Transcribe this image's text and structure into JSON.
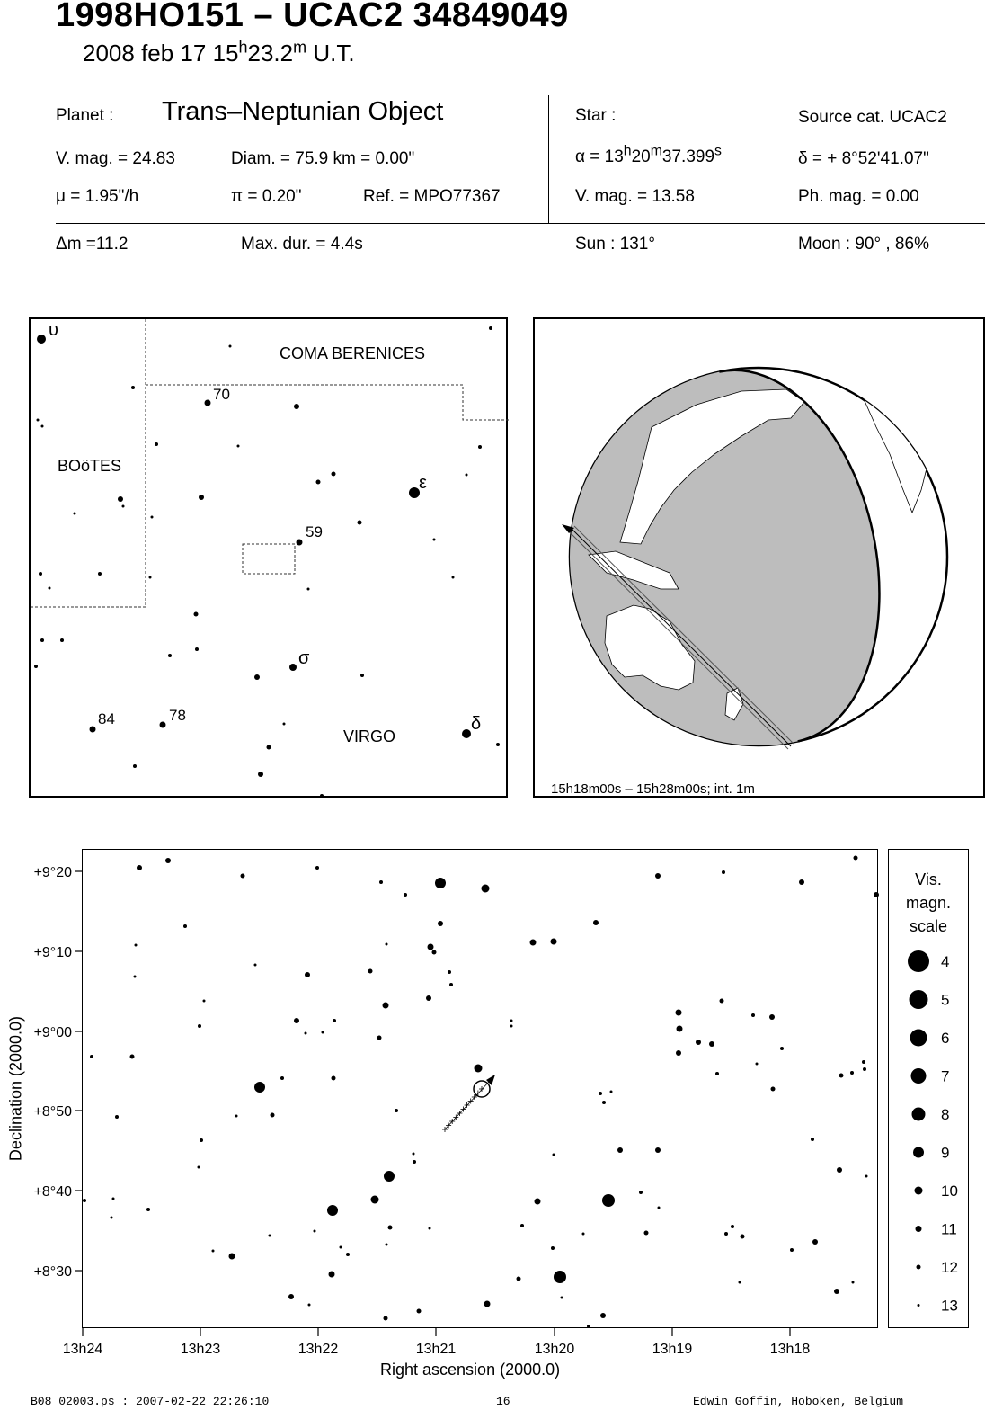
{
  "header": {
    "title": "1998HO151  –  UCAC2 34849049",
    "date_prefix": "2008 feb 17  15",
    "date_h": "h",
    "date_mid": "23.2",
    "date_m": "m",
    "date_suffix": " U.T."
  },
  "info": {
    "planet_label": "Planet :",
    "planet_value": "Trans–Neptunian Object",
    "vmag": "V. mag. = 24.83",
    "diam": "Diam. = 75.9 km = 0.00\"",
    "mu": "μ =  1.95\"/h",
    "pi": "π =  0.20\"",
    "ref": "Ref. = MPO77367",
    "star_label": "Star :",
    "source_cat": "Source cat.  UCAC2",
    "alpha_prefix": "α = 13",
    "alpha_h": "h",
    "alpha_mid1": "20",
    "alpha_m": "m",
    "alpha_mid2": "37.399",
    "alpha_s": "s",
    "delta": "δ = + 8°52'41.07\"",
    "star_vmag": "V. mag. = 13.58",
    "ph_mag": "Ph. mag. =  0.00",
    "dm": "Δm =11.2",
    "max_dur": "Max. dur. = 4.4s",
    "sun": "Sun : 131°",
    "moon": "Moon :  90° , 86%"
  },
  "finder_chart": {
    "constellations": [
      "COMA BERENICES",
      "BOöTES",
      "VIRGO"
    ],
    "star_labels": [
      {
        "text": "υ",
        "greek": true
      },
      {
        "text": "70",
        "greek": false
      },
      {
        "text": "ε",
        "greek": true
      },
      {
        "text": "59",
        "greek": false
      },
      {
        "text": "σ",
        "greek": true
      },
      {
        "text": "84",
        "greek": false
      },
      {
        "text": "78",
        "greek": false
      },
      {
        "text": "δ",
        "greek": true
      }
    ]
  },
  "globe": {
    "caption": "15h18m00s – 15h28m00s; int.  1m"
  },
  "star_chart": {
    "x_ticks": [
      "13h24",
      "13h23",
      "13h22",
      "13h21",
      "13h20",
      "13h19",
      "13h18"
    ],
    "y_ticks": [
      "+9°20",
      "+9°10",
      "+9°00",
      "+8°50",
      "+8°40",
      "+8°30"
    ],
    "xlabel": "Right ascension (2000.0)",
    "ylabel": "Declination (2000.0)"
  },
  "mag_scale": {
    "title_lines": [
      "Vis.",
      "magn.",
      "scale"
    ],
    "levels": [
      "4",
      "5",
      "6",
      "7",
      "8",
      "9",
      "10",
      "11",
      "12",
      "13"
    ]
  },
  "footer": {
    "left": "B08_02003.ps : 2007-02-22 22:26:10",
    "page": "16",
    "right": "Edwin Goffin, Hoboken, Belgium"
  }
}
